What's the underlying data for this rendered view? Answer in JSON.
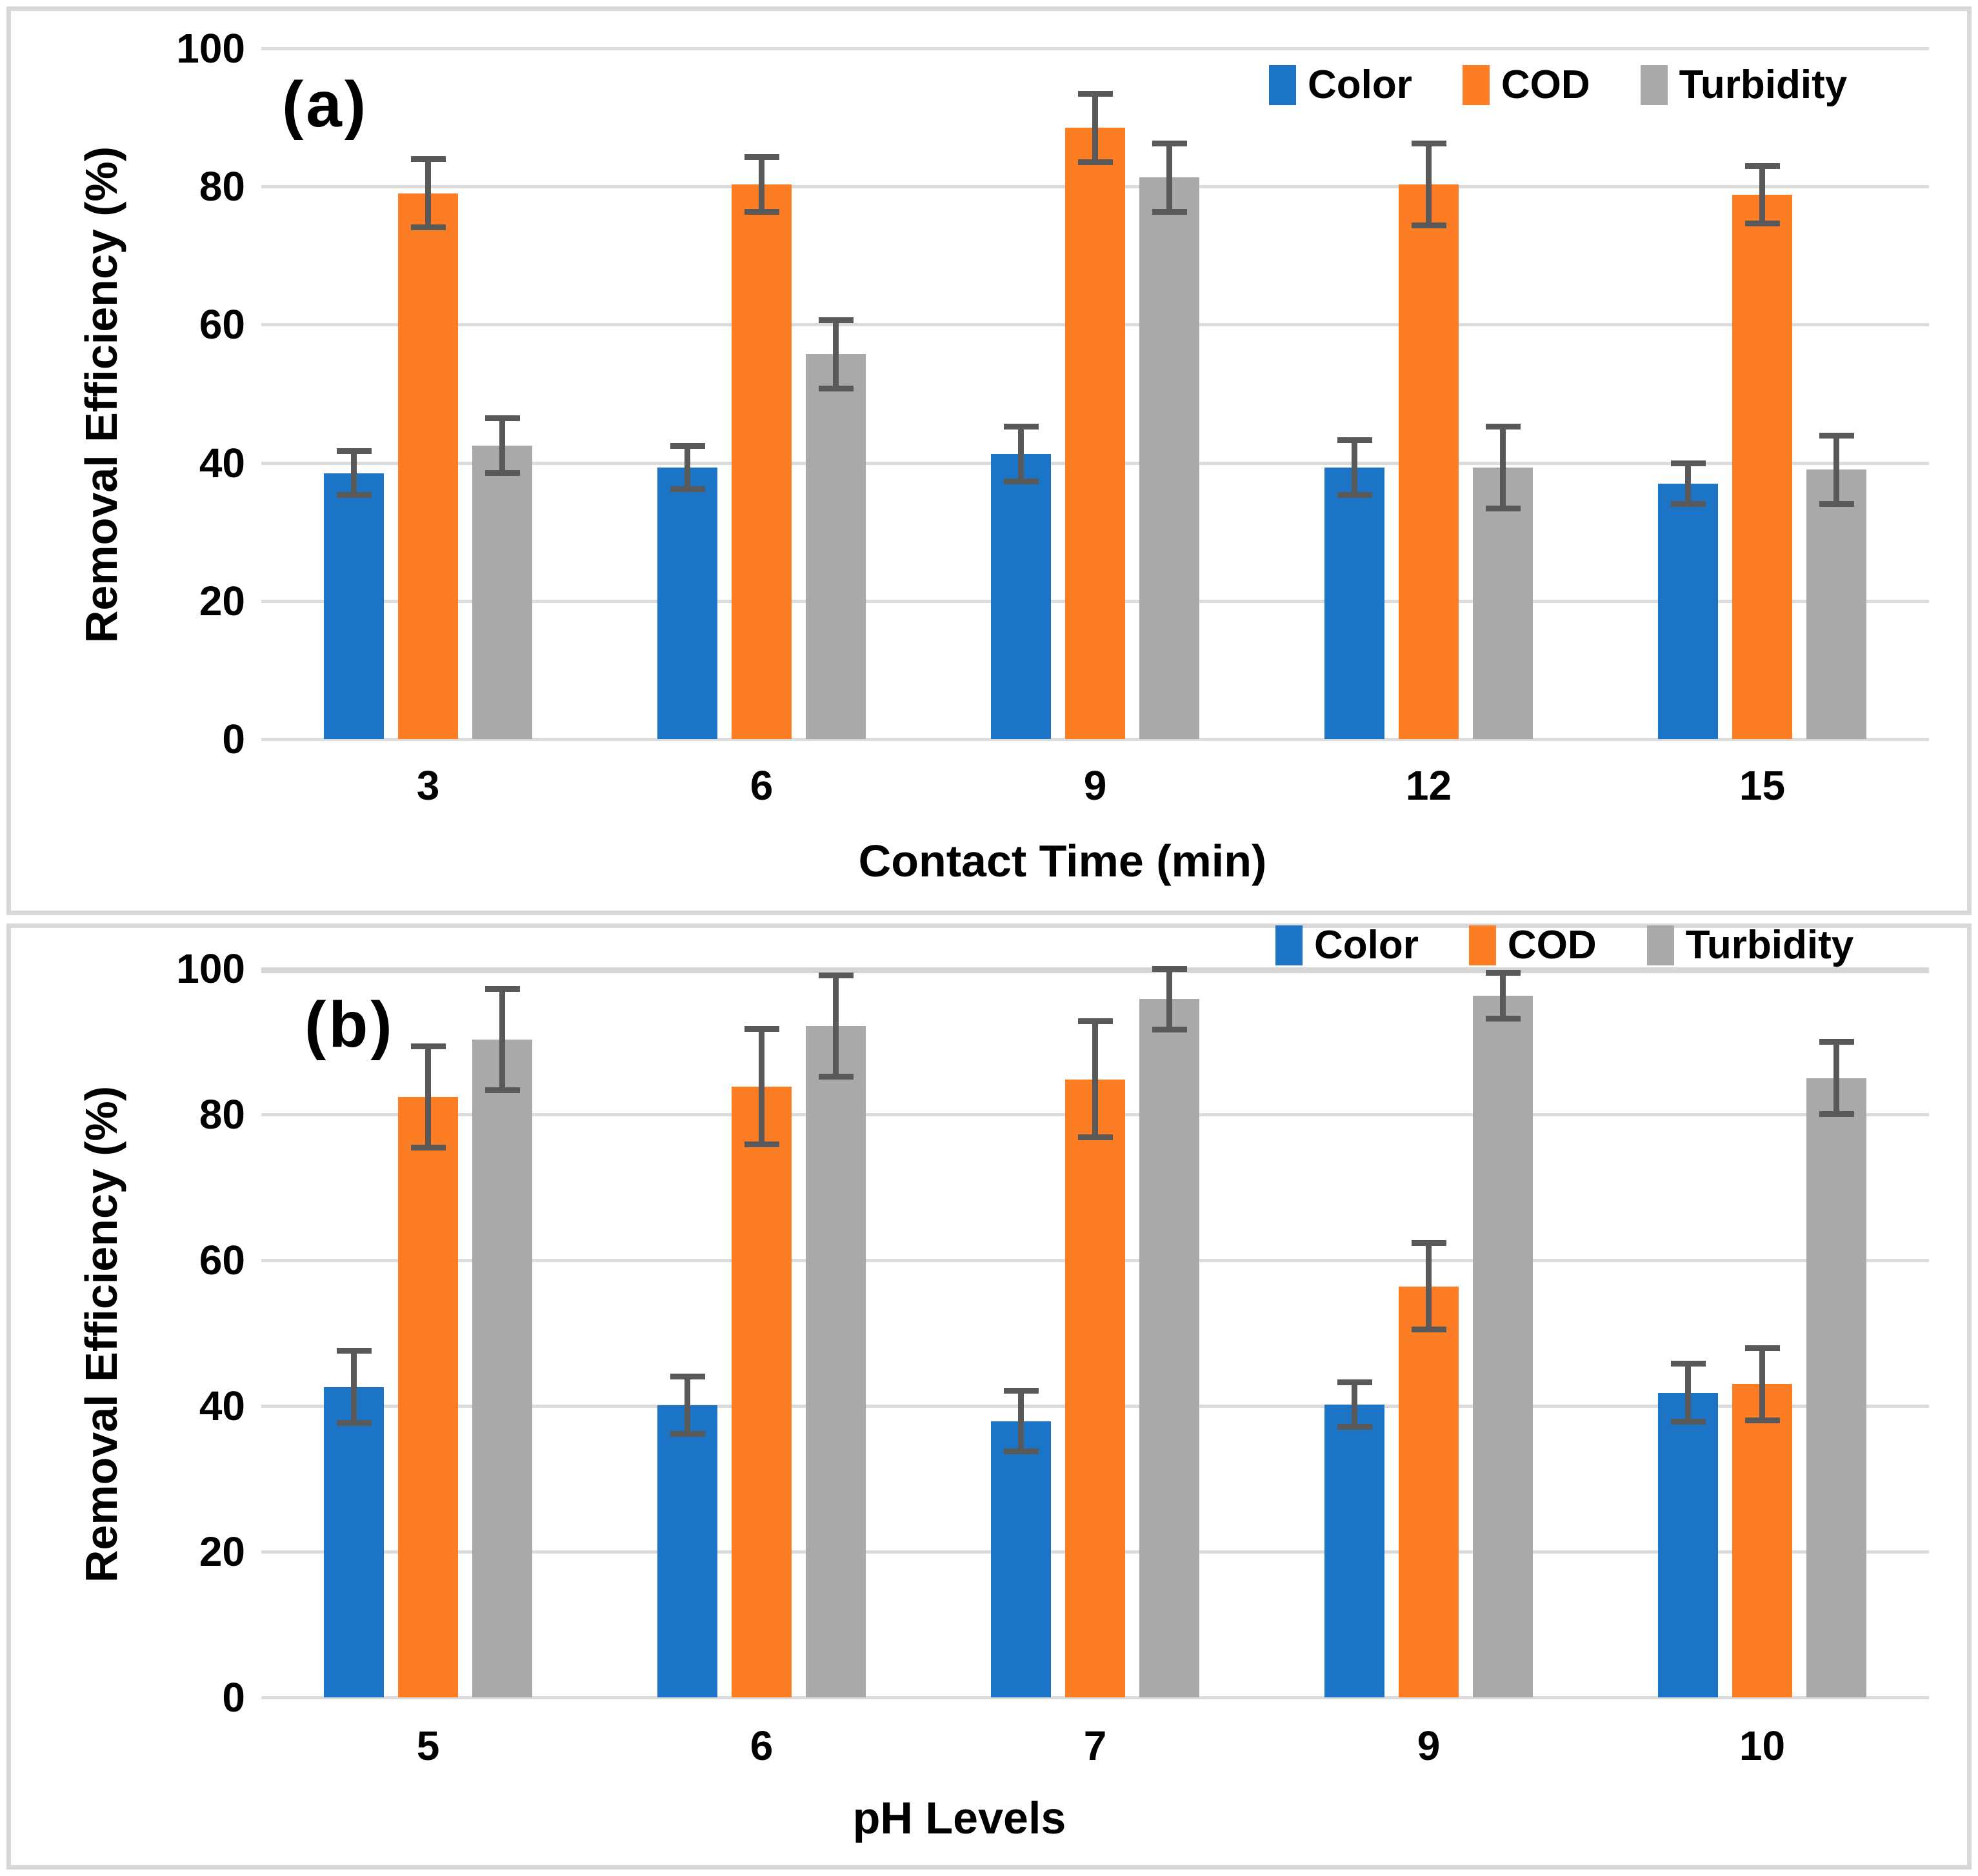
{
  "figure": {
    "panels": [
      "(a)",
      "(b)"
    ],
    "legend_labels": [
      "Color",
      "COD",
      "Turbidity"
    ],
    "colors": {
      "color_series": "#1b74c5",
      "cod_series": "#fc7d23",
      "turbidity_series": "#a9a9a9",
      "error_bars": "#595959",
      "gridlines": "#dcdcdc",
      "panel_border": "#d8d8d8"
    }
  },
  "chart_data": [
    {
      "type": "bar",
      "panel_label": "(a)",
      "xlabel": "Contact Time (min)",
      "ylabel": "Removal Efficiency (%)",
      "categories": [
        "3",
        "6",
        "9",
        "12",
        "15"
      ],
      "ylim": [
        0,
        100
      ],
      "yticks": [
        100,
        80,
        60,
        40,
        20,
        0
      ],
      "grid": true,
      "legend_position": "top-right-inside",
      "series": [
        {
          "name": "Color",
          "color": "#1b74c5",
          "values": [
            38.5,
            39.3,
            41.3,
            39.3,
            37.0
          ],
          "errors": [
            3.2,
            3.2,
            4.0,
            4.0,
            3.0
          ]
        },
        {
          "name": "COD",
          "color": "#fc7d23",
          "values": [
            79.0,
            80.3,
            88.5,
            80.3,
            78.8
          ],
          "errors": [
            5.0,
            4.0,
            5.0,
            6.0,
            4.2
          ]
        },
        {
          "name": "Turbidity",
          "color": "#a9a9a9",
          "values": [
            42.5,
            55.7,
            81.3,
            39.3,
            39.0
          ],
          "errors": [
            4.0,
            5.0,
            5.0,
            6.0,
            5.0
          ]
        }
      ]
    },
    {
      "type": "bar",
      "panel_label": "(b)",
      "xlabel": "pH Levels",
      "ylabel": "Removal Efficiency (%)",
      "categories": [
        "5",
        "6",
        "7",
        "9",
        "10"
      ],
      "ylim": [
        0,
        100
      ],
      "yticks": [
        100,
        80,
        60,
        40,
        20,
        0
      ],
      "grid": true,
      "legend_position": "top-right-inside",
      "series": [
        {
          "name": "Color",
          "color": "#1b74c5",
          "values": [
            42.6,
            40.1,
            37.9,
            40.2,
            41.8
          ],
          "errors": [
            5.0,
            4.0,
            4.2,
            3.1,
            4.0
          ]
        },
        {
          "name": "COD",
          "color": "#fc7d23",
          "values": [
            82.4,
            83.8,
            84.8,
            56.4,
            43.0
          ],
          "errors": [
            7.0,
            8.0,
            8.0,
            6.0,
            5.0
          ]
        },
        {
          "name": "Turbidity",
          "color": "#a9a9a9",
          "values": [
            90.3,
            92.1,
            95.8,
            96.3,
            85.0
          ],
          "errors": [
            7.0,
            7.0,
            4.2,
            3.2,
            5.0
          ]
        }
      ]
    }
  ]
}
